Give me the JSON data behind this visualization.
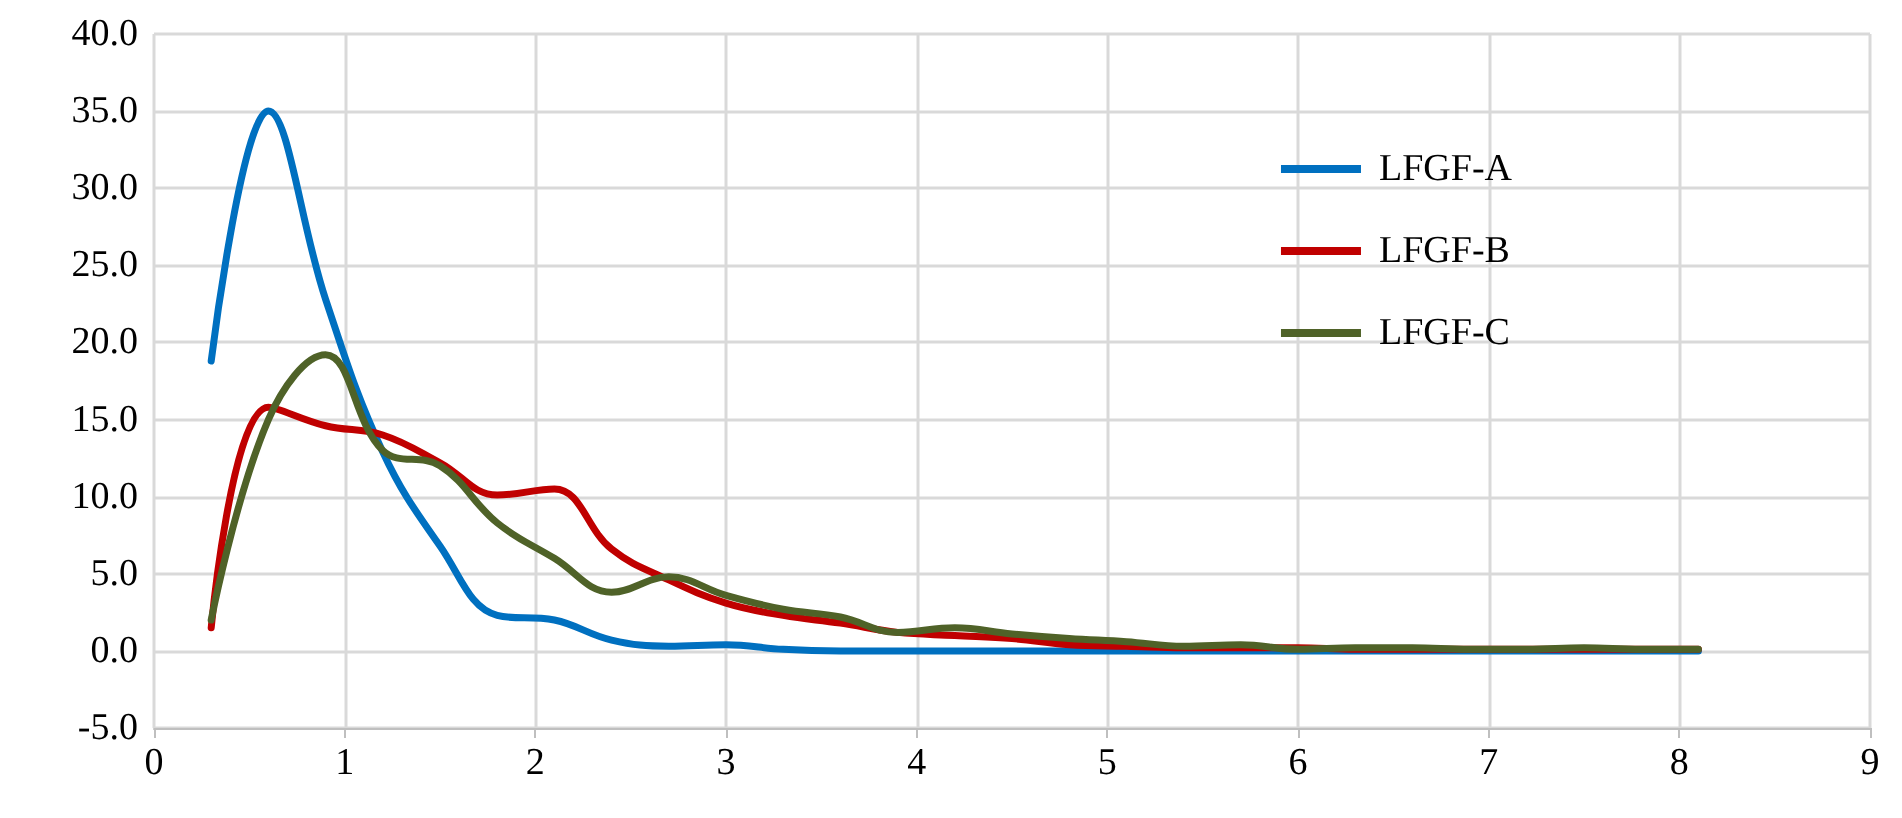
{
  "chart_data": {
    "type": "line",
    "x": [
      0.3,
      0.6,
      0.9,
      1.2,
      1.5,
      1.8,
      2.1,
      2.4,
      2.7,
      3.0,
      3.3,
      3.6,
      3.9,
      4.2,
      4.5,
      4.8,
      5.1,
      5.4,
      5.7,
      6.0,
      6.3,
      6.6,
      6.9,
      7.2,
      7.5,
      7.8,
      8.1
    ],
    "series": [
      {
        "name": "LFGF-A",
        "color": "#0070c0",
        "values": [
          18.8,
          35.0,
          22.8,
          12.9,
          6.8,
          2.3,
          2.0,
          0.7,
          0.3,
          0.4,
          0.1,
          0.0,
          0.0,
          0.0,
          0.0,
          0.0,
          0.0,
          0.0,
          0.0,
          0.0,
          0.0,
          0.0,
          0.0,
          0.0,
          0.0,
          0.0,
          0.0
        ]
      },
      {
        "name": "LFGF-B",
        "color": "#c00000",
        "values": [
          1.5,
          15.8,
          14.6,
          14.0,
          12.2,
          10.1,
          10.5,
          6.6,
          4.6,
          3.1,
          2.3,
          1.8,
          1.2,
          1.0,
          0.8,
          0.4,
          0.3,
          0.2,
          0.2,
          0.2,
          0.1,
          0.1,
          0.1,
          0.1,
          0.1,
          0.1,
          0.1
        ]
      },
      {
        "name": "LFGF-C",
        "color": "#4f6228",
        "values": [
          2.0,
          15.0,
          19.2,
          13.0,
          12.0,
          8.3,
          6.0,
          3.8,
          4.8,
          3.6,
          2.7,
          2.2,
          1.2,
          1.5,
          1.1,
          0.8,
          0.6,
          0.3,
          0.4,
          0.1,
          0.2,
          0.2,
          0.1,
          0.1,
          0.2,
          0.1,
          0.1
        ]
      }
    ],
    "xlim": [
      0,
      9
    ],
    "xticks": [
      0,
      1,
      2,
      3,
      4,
      5,
      6,
      7,
      8,
      9
    ],
    "ylim": [
      -5,
      40
    ],
    "yticks": [
      {
        "value": -5,
        "label": "-5.0"
      },
      {
        "value": 0,
        "label": "0.0"
      },
      {
        "value": 5,
        "label": "5.0"
      },
      {
        "value": 10,
        "label": "10.0"
      },
      {
        "value": 15,
        "label": "15.0"
      },
      {
        "value": 20,
        "label": "20.0"
      },
      {
        "value": 25,
        "label": "25.0"
      },
      {
        "value": 30,
        "label": "30.0"
      },
      {
        "value": 35,
        "label": "35.0"
      },
      {
        "value": 40,
        "label": "40.0"
      }
    ],
    "grid": true,
    "legend": "top right",
    "marker": "none",
    "line_style": "solid"
  }
}
